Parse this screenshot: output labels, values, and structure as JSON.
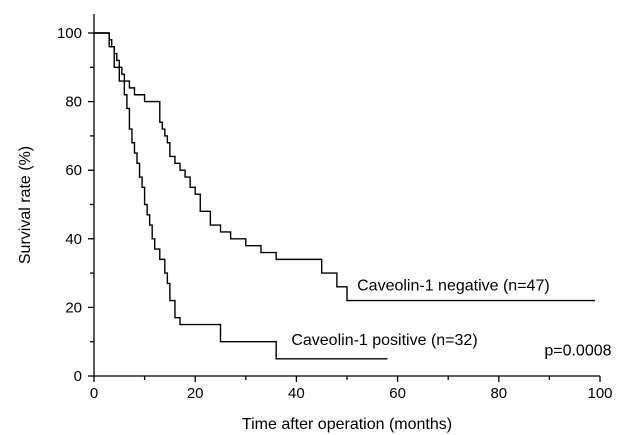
{
  "chart_data": {
    "type": "line",
    "title": "",
    "xlabel": "Time after operation (months)",
    "ylabel": "Survival rate (%)",
    "xlim": [
      0,
      100
    ],
    "ylim": [
      0,
      100
    ],
    "x_ticks": [
      "0",
      "20",
      "40",
      "60",
      "80",
      "100"
    ],
    "y_ticks": [
      "0",
      "20",
      "40",
      "60",
      "80",
      "100"
    ],
    "x_tick_values": [
      0,
      20,
      40,
      60,
      80,
      100
    ],
    "y_tick_values": [
      0,
      20,
      40,
      60,
      80,
      100
    ],
    "x_minor_tick_values": [
      10,
      30,
      50,
      70,
      90
    ],
    "y_minor_tick_values": [
      10,
      30,
      50,
      70,
      90
    ],
    "grid": false,
    "step": "post",
    "series": [
      {
        "name": "Caveolin-1 negative (n=47)",
        "x": [
          0,
          3,
          3.5,
          4,
          4.5,
          5,
          5.5,
          6,
          7,
          8,
          10,
          12,
          13,
          13.5,
          14,
          14.5,
          15,
          16,
          17,
          18,
          19,
          20,
          21,
          23,
          25,
          27,
          30,
          33,
          36,
          45,
          48,
          50,
          99
        ],
        "y": [
          100,
          98,
          96,
          94,
          92,
          90,
          88,
          86,
          84,
          82,
          80,
          80,
          74,
          72,
          70,
          68,
          64,
          62,
          60,
          58,
          55,
          53,
          48,
          44,
          42,
          40,
          38,
          36,
          34,
          30,
          26,
          22,
          22
        ]
      },
      {
        "name": "Caveolin-1 positive (n=32)",
        "x": [
          0,
          3,
          4,
          5,
          6,
          6.5,
          7,
          7.5,
          8,
          8.5,
          9,
          9.5,
          10,
          10.5,
          11,
          11.5,
          12,
          13,
          14,
          14.5,
          15,
          16,
          17,
          25,
          36,
          58
        ],
        "y": [
          100,
          96,
          90,
          86,
          82,
          78,
          72,
          68,
          65,
          62,
          58,
          55,
          50,
          47,
          44,
          40,
          37,
          34,
          30,
          27,
          22,
          17,
          15,
          10,
          5,
          5
        ]
      }
    ],
    "annotations": [
      {
        "text": "Caveolin-1 negative (n=47)",
        "x": 52,
        "y": 25
      },
      {
        "text": "Caveolin-1 positive (n=32)",
        "x": 39,
        "y": 9
      },
      {
        "text": "p=0.0008",
        "x": 89,
        "y": 6
      }
    ]
  }
}
